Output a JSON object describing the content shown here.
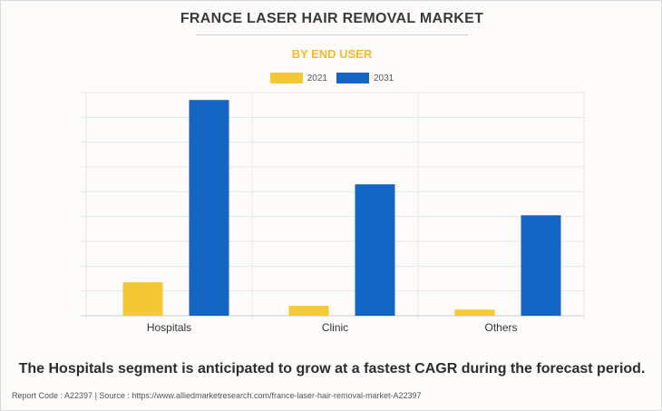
{
  "chart_data": {
    "type": "bar",
    "title": "FRANCE LASER HAIR REMOVAL MARKET",
    "subtitle": "BY END USER",
    "categories": [
      "Hospitals",
      "Clinic",
      "Others"
    ],
    "series": [
      {
        "name": "2021",
        "color": "#f5c935",
        "values": [
          13.5,
          4,
          2.5
        ]
      },
      {
        "name": "2031",
        "color": "#1366c4",
        "values": [
          87,
          53,
          40.5
        ]
      }
    ],
    "ylim": [
      0,
      90
    ],
    "grid": true,
    "legend_position": "top-center",
    "xlabel": "",
    "ylabel": ""
  },
  "caption": "The Hospitals segment is anticipated to grow at a fastest CAGR during the forecast period.",
  "footer": "Report Code : A22397  |  Source : https://www.alliedmarketresearch.com/france-laser-hair-removal-market-A22397"
}
